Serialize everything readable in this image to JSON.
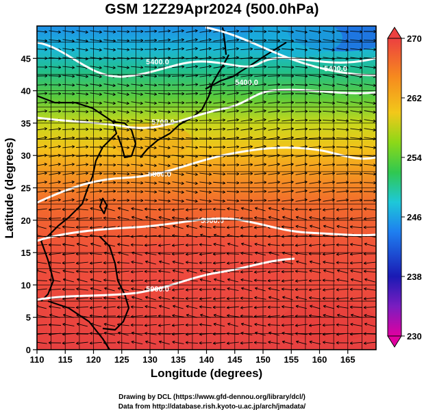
{
  "title": "GSM 12Z29Apr2024 (500.0hPa)",
  "xaxis": {
    "label": "Longitude (degrees)",
    "ticks": [
      110,
      115,
      120,
      125,
      130,
      135,
      140,
      145,
      150,
      155,
      160,
      165
    ],
    "range": [
      110,
      170
    ]
  },
  "yaxis": {
    "label": "Latitude  (degrees)",
    "ticks": [
      0,
      5,
      10,
      15,
      20,
      25,
      30,
      35,
      40,
      45
    ],
    "range": [
      0,
      50
    ]
  },
  "colorbar": {
    "ticks": [
      230,
      238,
      246,
      254,
      262,
      270
    ],
    "range": [
      230,
      270
    ],
    "colors": [
      "#e0009f",
      "#2020b0",
      "#1e90ff",
      "#20c8c8",
      "#32cd32",
      "#b0e000",
      "#ffd700",
      "#ff9900",
      "#ff5522",
      "#e84040"
    ]
  },
  "contours": [
    {
      "label": "5400.0"
    },
    {
      "label": "5400.0"
    },
    {
      "label": "5400.0"
    },
    {
      "label": "5700.0"
    },
    {
      "label": "5800.0"
    },
    {
      "label": "5900.0"
    },
    {
      "label": "5900.0"
    }
  ],
  "credits": [
    "Drawing by DCL (https://www.gfd-dennou.org/library/dcl/)",
    "Data from http://database.rish.kyoto-u.ac.jp/arch/jmadata/"
  ],
  "chart_data": {
    "type": "heatmap",
    "title": "GSM 12Z29Apr2024 (500.0hPa)",
    "xlabel": "Longitude (degrees)",
    "ylabel": "Latitude  (degrees)",
    "xlim": [
      110,
      170
    ],
    "ylim": [
      0,
      50
    ],
    "colorbar_range": [
      230,
      270
    ],
    "colorbar_ticks": [
      230,
      238,
      246,
      254,
      262,
      270
    ],
    "overlays": [
      "wind streamlines (arrows)",
      "geopotential height contours (white)",
      "coastlines"
    ],
    "grid": true,
    "contour_labels": [
      "5400.0",
      "5400.0",
      "5400.0",
      "5700.0",
      "5800.0",
      "5900.0",
      "5900.0"
    ]
  }
}
